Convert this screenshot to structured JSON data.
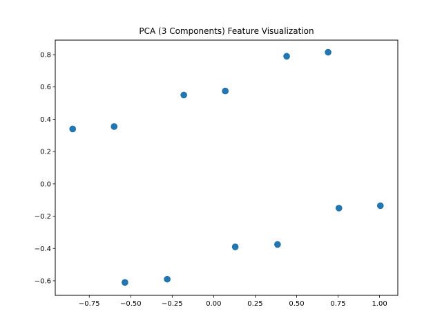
{
  "chart_data": {
    "type": "scatter",
    "title": "PCA (3 Components) Feature Visualization",
    "xlabel": "",
    "ylabel": "",
    "xlim": [
      -0.955,
      1.11
    ],
    "ylim": [
      -0.69,
      0.89
    ],
    "xticks": [
      -0.75,
      -0.5,
      -0.25,
      0.0,
      0.25,
      0.5,
      0.75,
      1.0
    ],
    "xtick_labels": [
      "−0.75",
      "−0.50",
      "−0.25",
      "0.00",
      "0.25",
      "0.50",
      "0.75",
      "1.00"
    ],
    "yticks": [
      -0.6,
      -0.4,
      -0.2,
      0.0,
      0.2,
      0.4,
      0.6,
      0.8
    ],
    "ytick_labels": [
      "−0.6",
      "−0.4",
      "−0.2",
      "0.0",
      "0.2",
      "0.4",
      "0.6",
      "0.8"
    ],
    "grid": false,
    "series": [
      {
        "color": "#1f77b4",
        "points": [
          {
            "x": -0.85,
            "y": 0.34
          },
          {
            "x": -0.6,
            "y": 0.355
          },
          {
            "x": -0.18,
            "y": 0.55
          },
          {
            "x": 0.07,
            "y": 0.575
          },
          {
            "x": 0.44,
            "y": 0.79
          },
          {
            "x": 0.69,
            "y": 0.815
          },
          {
            "x": 0.755,
            "y": -0.15
          },
          {
            "x": 1.005,
            "y": -0.135
          },
          {
            "x": 0.13,
            "y": -0.39
          },
          {
            "x": 0.385,
            "y": -0.375
          },
          {
            "x": -0.535,
            "y": -0.61
          },
          {
            "x": -0.28,
            "y": -0.59
          }
        ]
      }
    ]
  }
}
